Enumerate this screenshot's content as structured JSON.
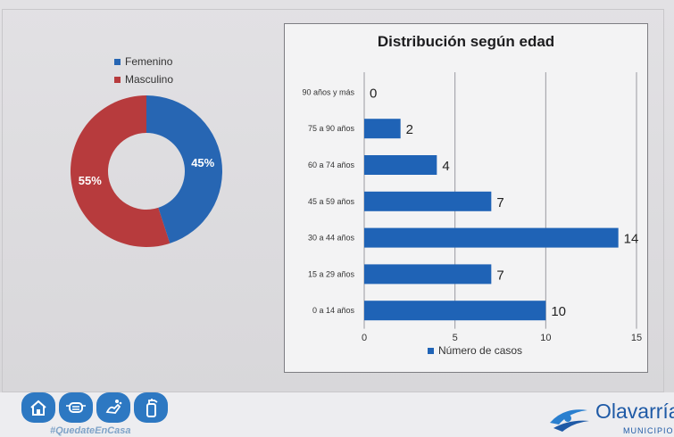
{
  "chart_data": [
    {
      "type": "pie",
      "variant": "donut",
      "legend": [
        "Femenino",
        "Masculino"
      ],
      "slices": [
        {
          "name": "Femenino",
          "value": 45,
          "label": "45%",
          "color": "#2766b3"
        },
        {
          "name": "Masculino",
          "value": 55,
          "label": "55%",
          "color": "#b73b3d"
        }
      ],
      "legend_position": "top-right"
    },
    {
      "type": "bar",
      "orientation": "horizontal",
      "title": "Distribución según edad",
      "categories": [
        "90 años y más",
        "75 a 90 años",
        "60 a 74 años",
        "45 a 59 años",
        "30 a 44 años",
        "15 a 29 años",
        "0 a 14 años"
      ],
      "series": [
        {
          "name": "Número de casos",
          "values": [
            0,
            2,
            4,
            7,
            14,
            7,
            10
          ],
          "color": "#1f63b6"
        }
      ],
      "x_ticks": [
        "0",
        "5",
        "10",
        "15"
      ],
      "xlim": [
        0,
        15
      ],
      "grid": true,
      "legend_position": "bottom"
    }
  ],
  "footer": {
    "hashtag": "#QuedateEnCasa",
    "icons": [
      "house-icon",
      "mask-icon",
      "hands-wash-icon",
      "spray-bottle-icon"
    ],
    "logo_name": "Olavarría",
    "logo_sub": "MUNICIPIO"
  }
}
